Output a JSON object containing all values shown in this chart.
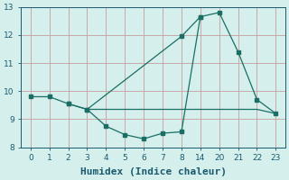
{
  "background_color": "#d5efec",
  "grid_color": "#c8a8a8",
  "line_color": "#1a6e64",
  "tick_labels": [
    0,
    1,
    2,
    3,
    4,
    5,
    6,
    7,
    8,
    14,
    20,
    21,
    22,
    23
  ],
  "line1_x": [
    0,
    1,
    2,
    3,
    4,
    5,
    6,
    7,
    8,
    9,
    10,
    11,
    12,
    13
  ],
  "line1_y": [
    9.8,
    9.8,
    9.55,
    9.35,
    8.75,
    8.45,
    8.3,
    8.5,
    8.55,
    12.65,
    12.8,
    11.4,
    9.7,
    9.2
  ],
  "line2_x": [
    2,
    3,
    8,
    9
  ],
  "line2_y": [
    9.55,
    9.35,
    11.95,
    12.65
  ],
  "line3_x": [
    3,
    8,
    12,
    13
  ],
  "line3_y": [
    9.35,
    9.35,
    9.35,
    9.2
  ],
  "xlim": [
    -0.5,
    13.5
  ],
  "ylim": [
    8.0,
    13.0
  ],
  "yticks": [
    8,
    9,
    10,
    11,
    12,
    13
  ],
  "xlabel": "Humidex (Indice chaleur)",
  "xlabel_fontsize": 8
}
